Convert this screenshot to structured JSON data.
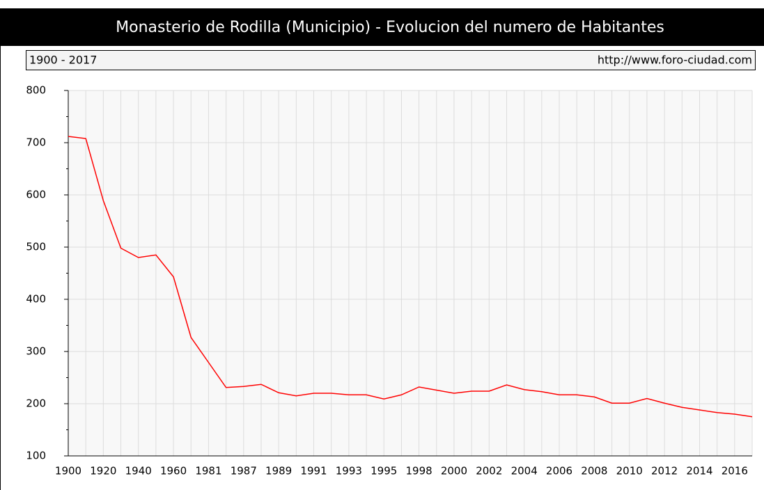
{
  "chart_data": {
    "type": "line",
    "title": "Monasterio de Rodilla (Municipio) - Evolucion del numero de Habitantes",
    "period": "1900 - 2017",
    "source": "http://www.foro-ciudad.com",
    "categories": [
      "1900",
      null,
      "1920",
      null,
      "1940",
      null,
      "1960",
      null,
      "1981",
      null,
      "1987",
      null,
      "1989",
      null,
      "1991",
      null,
      "1993",
      null,
      "1995",
      null,
      "1998",
      null,
      "2000",
      null,
      "2002",
      null,
      "2004",
      null,
      "2006",
      null,
      "2008",
      null,
      "2010",
      null,
      "2012",
      null,
      "2014",
      null,
      "2016",
      null
    ],
    "series": [
      {
        "name": "Habitantes",
        "color": "#ff0000",
        "values": [
          712,
          708,
          589,
          498,
          480,
          485,
          443,
          327,
          279,
          231,
          233,
          237,
          221,
          215,
          220,
          220,
          217,
          217,
          209,
          217,
          232,
          226,
          220,
          224,
          224,
          236,
          227,
          223,
          217,
          217,
          213,
          201,
          201,
          210,
          201,
          193,
          188,
          183,
          180,
          175
        ]
      }
    ],
    "ylim": [
      100,
      800
    ],
    "yticks": [
      100,
      200,
      300,
      400,
      500,
      600,
      700,
      800
    ],
    "grid": true
  }
}
